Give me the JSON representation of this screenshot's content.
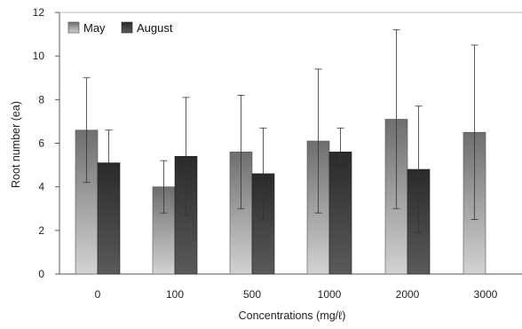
{
  "chart_data": {
    "type": "bar",
    "title": "",
    "xlabel": "Concentrations (mg/ℓ)",
    "ylabel": "Root number (ea)",
    "ylim": [
      0,
      12
    ],
    "yticks": [
      0,
      2,
      4,
      6,
      8,
      10,
      12
    ],
    "categories": [
      "0",
      "100",
      "500",
      "1000",
      "2000",
      "3000"
    ],
    "series": [
      {
        "name": "May",
        "color": "#9a9a9a",
        "values": [
          6.6,
          4.0,
          5.6,
          6.1,
          7.1,
          6.5
        ],
        "error": [
          2.4,
          1.2,
          2.6,
          3.3,
          4.1,
          4.0
        ]
      },
      {
        "name": "August",
        "color": "#3a3a3a",
        "values": [
          5.1,
          5.4,
          4.6,
          5.6,
          4.8,
          null
        ],
        "error": [
          1.5,
          2.7,
          2.1,
          1.1,
          2.9,
          null
        ]
      }
    ],
    "legend_position": "top-left",
    "grid": false
  }
}
